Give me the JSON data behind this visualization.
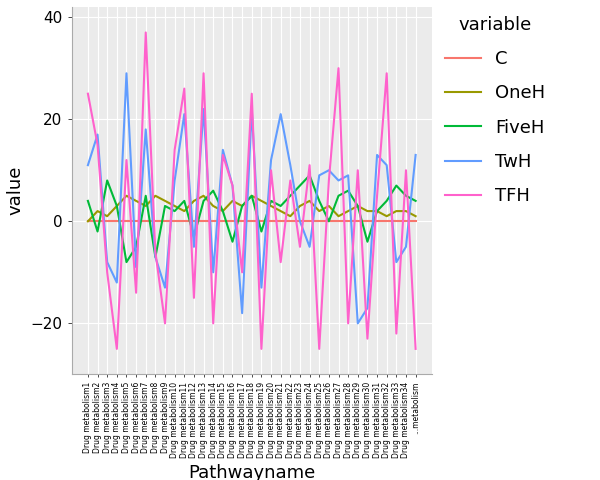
{
  "title": "",
  "xlabel": "Pathwayname",
  "ylabel": "value",
  "legend_title": "variable",
  "ylim": [
    -30,
    42
  ],
  "yticks": [
    -20,
    0,
    20,
    40
  ],
  "colors": {
    "C": "#F8766D",
    "OneH": "#999900",
    "FiveH": "#00BA38",
    "TwH": "#619CFF",
    "TFH": "#FF61CC"
  },
  "series_C": [
    0,
    0,
    0,
    0,
    0,
    0,
    0,
    0,
    0,
    0,
    0,
    0,
    0,
    0,
    0,
    0,
    0,
    0,
    0,
    0,
    0,
    0,
    0,
    0,
    0,
    0,
    0,
    0,
    0,
    0,
    0,
    0,
    0,
    0,
    0
  ],
  "series_OneH": [
    0,
    2,
    1,
    3,
    5,
    4,
    3,
    5,
    4,
    3,
    2,
    4,
    5,
    3,
    2,
    4,
    3,
    5,
    4,
    3,
    2,
    1,
    3,
    4,
    2,
    3,
    1,
    2,
    3,
    2,
    2,
    1,
    2,
    2,
    1
  ],
  "series_FiveH": [
    4,
    -2,
    8,
    3,
    -8,
    -5,
    5,
    -7,
    3,
    2,
    4,
    -3,
    4,
    6,
    2,
    -4,
    3,
    5,
    -2,
    4,
    3,
    5,
    7,
    9,
    4,
    0,
    5,
    6,
    3,
    -4,
    2,
    4,
    7,
    5,
    4
  ],
  "series_TwH": [
    11,
    17,
    -8,
    -12,
    29,
    -9,
    18,
    -7,
    -13,
    8,
    21,
    -5,
    22,
    -10,
    14,
    7,
    -18,
    22,
    -13,
    12,
    21,
    11,
    0,
    -5,
    9,
    10,
    8,
    9,
    -20,
    -17,
    13,
    11,
    -8,
    -5,
    13
  ],
  "series_TFH": [
    25,
    15,
    -10,
    -25,
    12,
    -14,
    37,
    -6,
    -20,
    14,
    26,
    -15,
    29,
    -20,
    13,
    7,
    -10,
    25,
    -25,
    10,
    -8,
    8,
    -5,
    11,
    -25,
    8,
    30,
    -20,
    10,
    -23,
    5,
    29,
    -22,
    10,
    -25
  ],
  "n_points": 35,
  "background_color": "#EBEBEB",
  "grid_color": "#FFFFFF",
  "legend_fontsize": 13,
  "axis_label_fontsize": 13,
  "tick_fontsize": 11,
  "linewidth": 1.5
}
